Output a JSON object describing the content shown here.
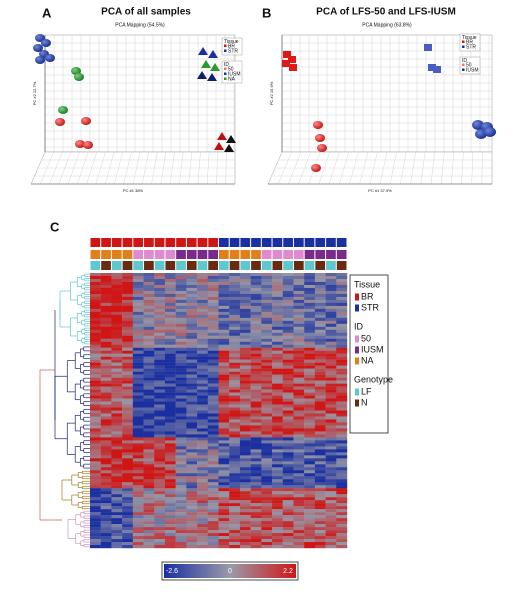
{
  "panel_a": {
    "label": "A",
    "title": "PCA of all samples",
    "subtitle": "PCA Mapping (54.5%)",
    "x_axis": "PC #1 38%",
    "y_axis": "PC #2 12.7%",
    "legend": [
      {
        "heading": "Tissue",
        "items": [
          "BR",
          "STR"
        ]
      },
      {
        "heading": "ID",
        "items": [
          "50",
          "IUSM",
          "NA"
        ]
      }
    ]
  },
  "panel_b": {
    "label": "B",
    "title": "PCA of LFS-50 and LFS-IUSM",
    "subtitle": "PCA Mapping (63.8%)",
    "x_axis": "PC #1 37.9%",
    "y_axis": "PC #2 15.9%",
    "legend": [
      {
        "heading": "Tissue",
        "items": [
          "BR",
          "STR"
        ]
      },
      {
        "heading": "ID",
        "items": [
          "50",
          "IUSM"
        ]
      }
    ]
  },
  "panel_c": {
    "label": "C",
    "legend": [
      {
        "heading": "Tissue",
        "items": [
          "BR",
          "STR"
        ]
      },
      {
        "heading": "ID",
        "items": [
          "50",
          "IUSM",
          "NA"
        ]
      },
      {
        "heading": "Genotype",
        "items": [
          "LF",
          "N"
        ]
      }
    ],
    "scale": [
      "-2.6",
      "0",
      "2.2"
    ]
  }
}
